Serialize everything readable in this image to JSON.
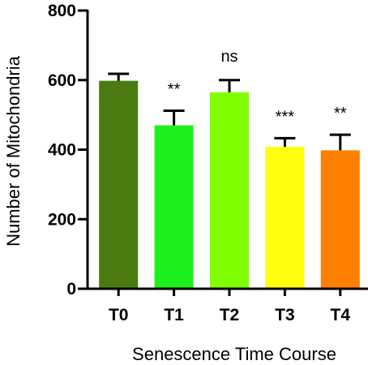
{
  "chart_data": {
    "type": "bar",
    "categories": [
      "T0",
      "T1",
      "T2",
      "T3",
      "T4"
    ],
    "values": [
      598,
      470,
      565,
      408,
      398
    ],
    "errors": [
      20,
      42,
      35,
      25,
      45
    ],
    "annotations": [
      "",
      "**",
      "ns",
      "***",
      "**"
    ],
    "colors": [
      "#4a7a10",
      "#1ef01e",
      "#80ff00",
      "#ffff0f",
      "#ff8000"
    ],
    "xlabel": "Senescence Time Course",
    "ylabel": "Number of Mitochondria",
    "ylim": [
      0,
      800
    ],
    "yticks": [
      "0",
      "200",
      "400",
      "600",
      "800"
    ],
    "grid": false,
    "legend": "none"
  }
}
